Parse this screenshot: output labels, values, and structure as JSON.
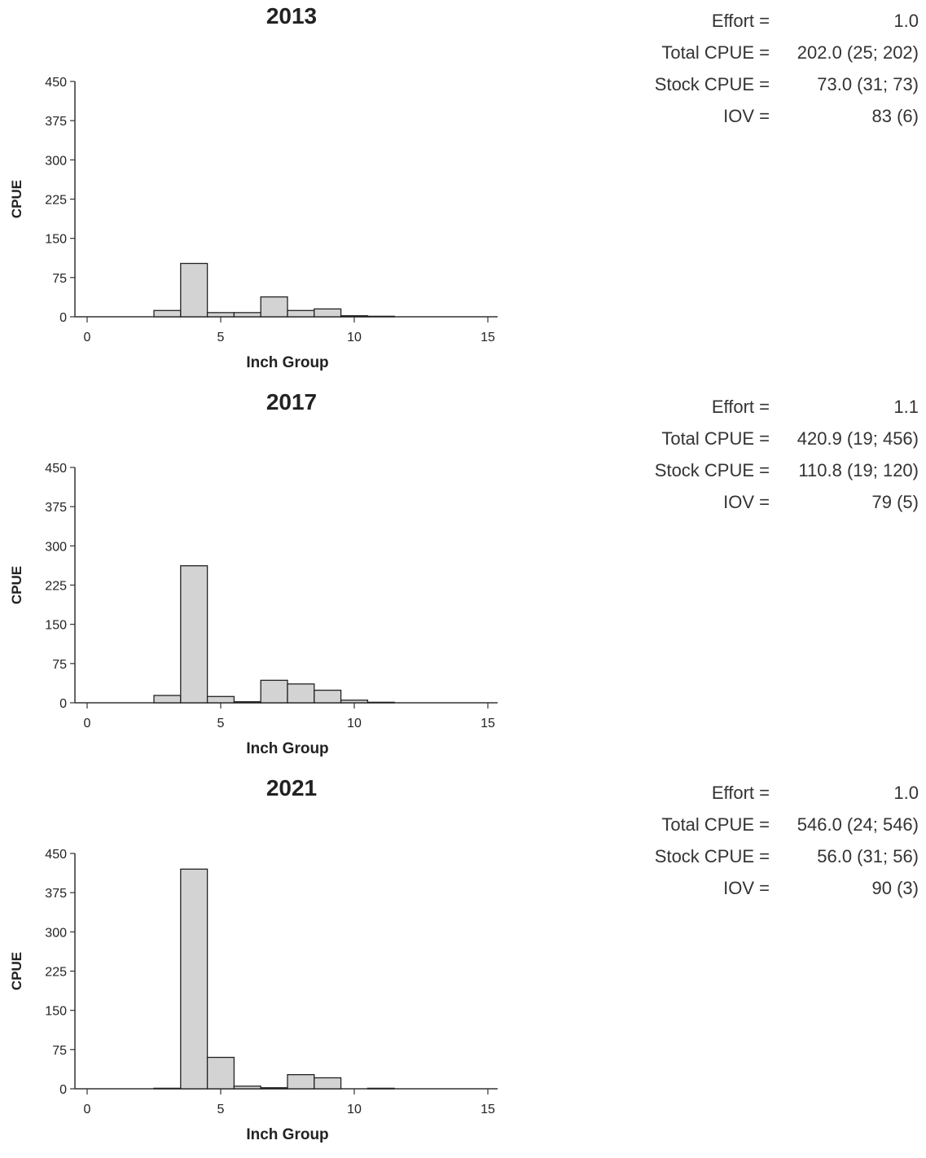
{
  "chart_data": [
    {
      "type": "bar",
      "title": "2013",
      "xlabel": "Inch Group",
      "ylabel": "CPUE",
      "xlim": [
        0,
        15
      ],
      "ylim": [
        0,
        450
      ],
      "xticks": [
        "0",
        "5",
        "10",
        "15"
      ],
      "yticks": [
        "0",
        "75",
        "150",
        "225",
        "300",
        "375",
        "450"
      ],
      "x": [
        3,
        4,
        5,
        6,
        7,
        8,
        9,
        10,
        11
      ],
      "values": [
        12,
        102,
        8,
        8,
        38,
        12,
        15,
        2,
        1
      ],
      "bar_color": "#d3d3d3",
      "stats": [
        {
          "label": "Effort =",
          "value": "1.0"
        },
        {
          "label": "Total CPUE =",
          "value": "202.0 (25; 202)"
        },
        {
          "label": "Stock CPUE =",
          "value": "73.0 (31; 73)"
        },
        {
          "label": "IOV =",
          "value": "83 (6)"
        }
      ]
    },
    {
      "type": "bar",
      "title": "2017",
      "xlabel": "Inch Group",
      "ylabel": "CPUE",
      "xlim": [
        0,
        15
      ],
      "ylim": [
        0,
        450
      ],
      "xticks": [
        "0",
        "5",
        "10",
        "15"
      ],
      "yticks": [
        "0",
        "75",
        "150",
        "225",
        "300",
        "375",
        "450"
      ],
      "x": [
        3,
        4,
        5,
        6,
        7,
        8,
        9,
        10,
        11
      ],
      "values": [
        14,
        262,
        12,
        2,
        43,
        36,
        24,
        5,
        1
      ],
      "bar_color": "#d3d3d3",
      "stats": [
        {
          "label": "Effort =",
          "value": "1.1"
        },
        {
          "label": "Total CPUE =",
          "value": "420.9 (19; 456)"
        },
        {
          "label": "Stock CPUE =",
          "value": "110.8 (19; 120)"
        },
        {
          "label": "IOV =",
          "value": "79 (5)"
        }
      ]
    },
    {
      "type": "bar",
      "title": "2021",
      "xlabel": "Inch Group",
      "ylabel": "CPUE",
      "xlim": [
        0,
        15
      ],
      "ylim": [
        0,
        450
      ],
      "xticks": [
        "0",
        "5",
        "10",
        "15"
      ],
      "yticks": [
        "0",
        "75",
        "150",
        "225",
        "300",
        "375",
        "450"
      ],
      "x": [
        3,
        4,
        5,
        6,
        7,
        8,
        9,
        10,
        11
      ],
      "values": [
        1,
        420,
        60,
        5,
        2,
        27,
        21,
        0,
        1
      ],
      "bar_color": "#d3d3d3",
      "stats": [
        {
          "label": "Effort =",
          "value": "1.0"
        },
        {
          "label": "Total CPUE =",
          "value": "546.0 (24; 546)"
        },
        {
          "label": "Stock CPUE =",
          "value": "56.0 (31; 56)"
        },
        {
          "label": "IOV =",
          "value": "90 (3)"
        }
      ]
    }
  ]
}
